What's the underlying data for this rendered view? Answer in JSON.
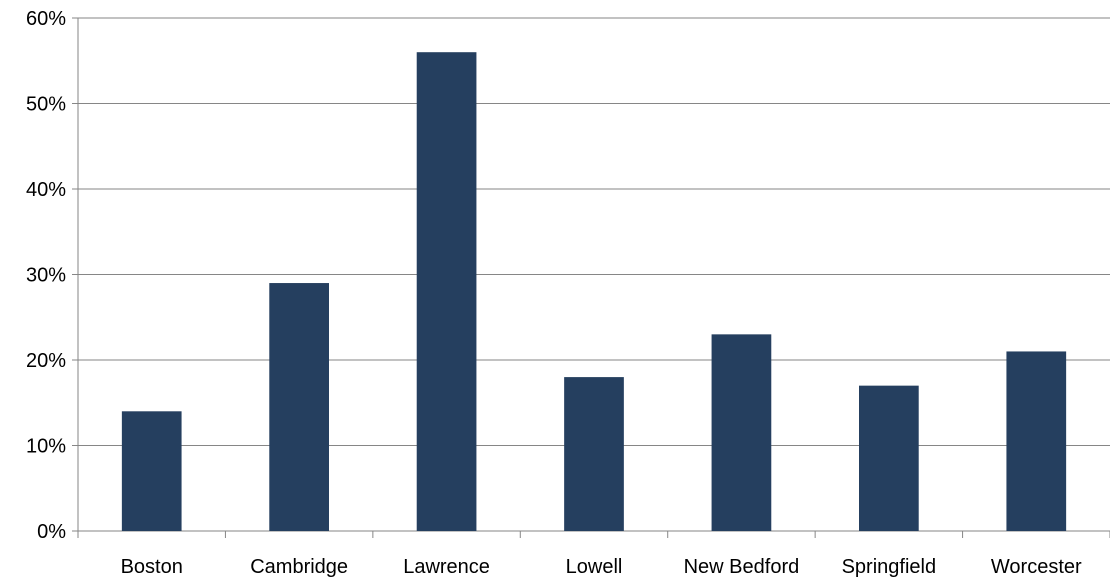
{
  "chart_data": {
    "type": "bar",
    "title": "",
    "xlabel": "",
    "ylabel": "",
    "categories": [
      "Boston",
      "Cambridge",
      "Lawrence",
      "Lowell",
      "New Bedford",
      "Springfield",
      "Worcester"
    ],
    "values": [
      0.14,
      0.29,
      0.56,
      0.18,
      0.23,
      0.17,
      0.21
    ],
    "ylim": [
      0,
      0.6
    ],
    "yticks": [
      0,
      0.1,
      0.2,
      0.3,
      0.4,
      0.5,
      0.6
    ],
    "ytick_labels": [
      "0%",
      "10%",
      "20%",
      "30%",
      "40%",
      "50%",
      "60%"
    ],
    "grid": true,
    "legend": "none",
    "colors": {
      "bar": "#253F5F",
      "gridline": "#868686",
      "axis": "#868686",
      "text": "#000000"
    }
  }
}
